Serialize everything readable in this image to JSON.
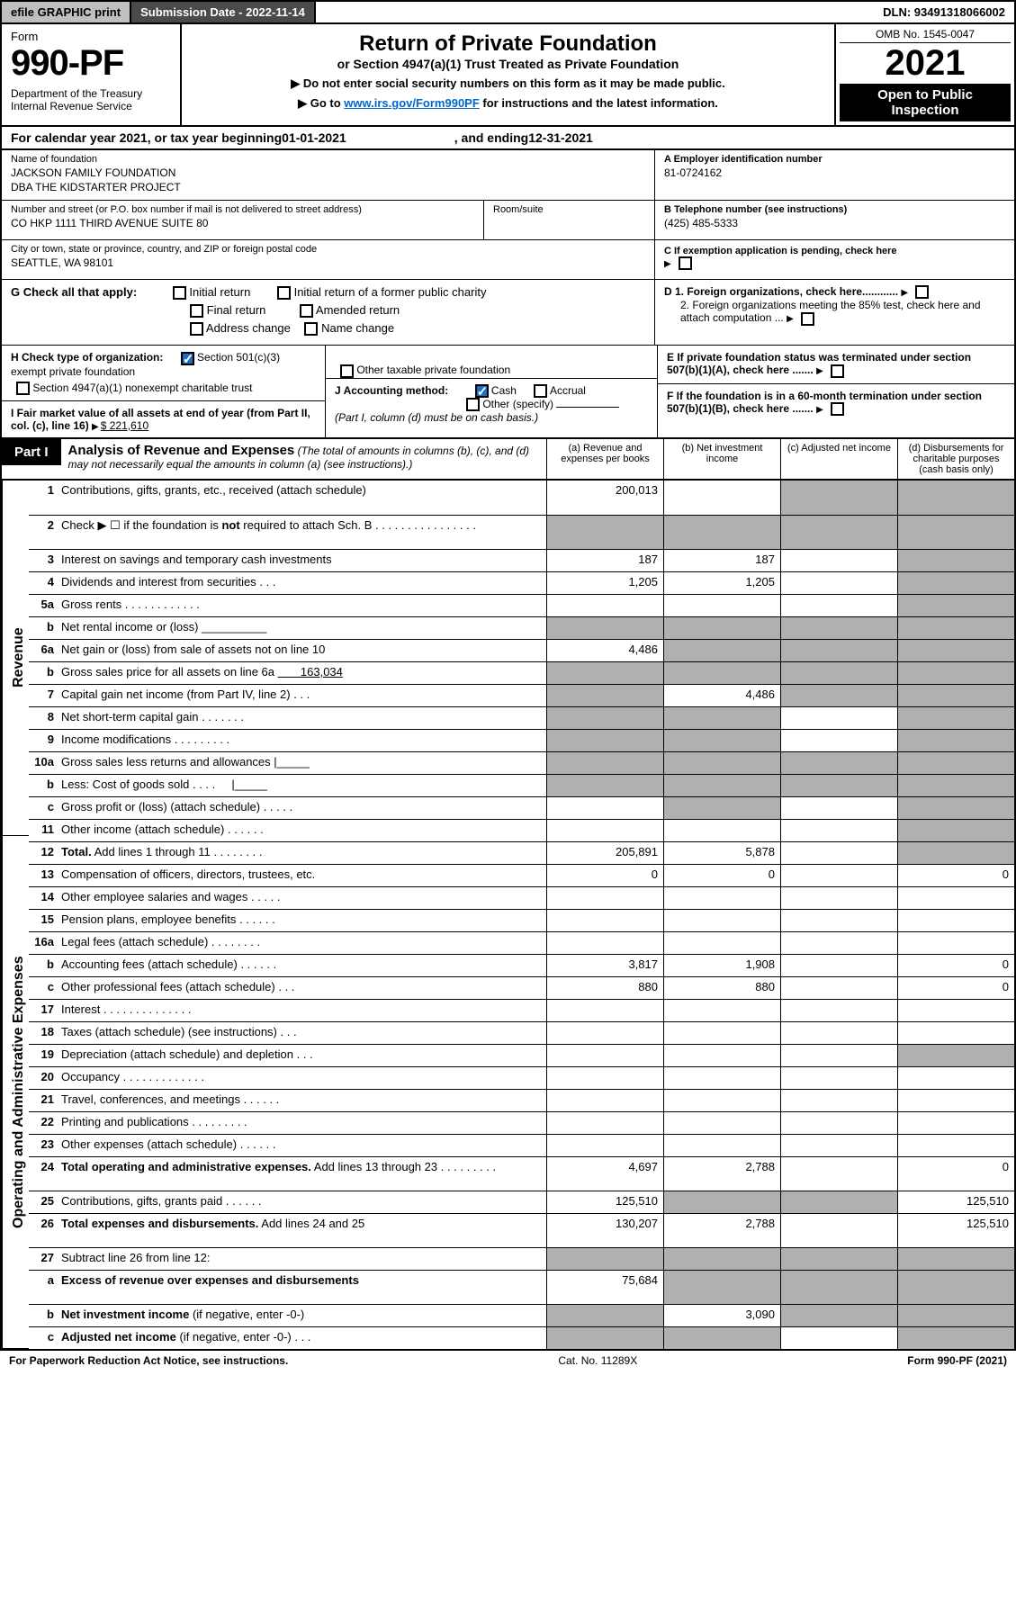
{
  "topbar": {
    "efile": "efile GRAPHIC print",
    "submission_label": "Submission Date - 2022-11-14",
    "dln_label": "DLN: 93491318066002"
  },
  "header": {
    "form": "Form",
    "form_num": "990-PF",
    "dept": "Department of the Treasury\nInternal Revenue Service",
    "title": "Return of Private Foundation",
    "sub1": "or Section 4947(a)(1) Trust Treated as Private Foundation",
    "sub2": "▶ Do not enter social security numbers on this form as it may be made public.",
    "sub3_pre": "▶ Go to ",
    "sub3_link": "www.irs.gov/Form990PF",
    "sub3_post": " for instructions and the latest information.",
    "omb": "OMB No. 1545-0047",
    "year": "2021",
    "open": "Open to Public Inspection"
  },
  "cal": {
    "pre": "For calendar year 2021, or tax year beginning ",
    "beg": "01-01-2021",
    "mid": ", and ending ",
    "end": "12-31-2021"
  },
  "name": {
    "lbl": "Name of foundation",
    "line1": "JACKSON FAMILY FOUNDATION",
    "line2": "DBA THE KIDSTARTER PROJECT"
  },
  "ein": {
    "lbl": "A Employer identification number",
    "val": "81-0724162"
  },
  "addr": {
    "lbl": "Number and street (or P.O. box number if mail is not delivered to street address)",
    "val": "CO HKP 1111 THIRD AVENUE SUITE 80",
    "room_lbl": "Room/suite"
  },
  "phone": {
    "lbl": "B Telephone number (see instructions)",
    "val": "(425) 485-5333"
  },
  "city": {
    "lbl": "City or town, state or province, country, and ZIP or foreign postal code",
    "val": "SEATTLE, WA  98101"
  },
  "exemptC": "C If exemption application is pending, check here",
  "G": {
    "lbl": "G Check all that apply:",
    "opts": [
      "Initial return",
      "Initial return of a former public charity",
      "Final return",
      "Amended return",
      "Address change",
      "Name change"
    ]
  },
  "D": {
    "d1": "D 1. Foreign organizations, check here............",
    "d2": "2. Foreign organizations meeting the 85% test, check here and attach computation ..."
  },
  "H": {
    "lbl": "H Check type of organization:",
    "o1": "Section 501(c)(3) exempt private foundation",
    "o2": "Section 4947(a)(1) nonexempt charitable trust",
    "o3": "Other taxable private foundation"
  },
  "E": "E  If private foundation status was terminated under section 507(b)(1)(A), check here .......",
  "I": {
    "lbl": "I Fair market value of all assets at end of year (from Part II, col. (c), line 16)",
    "val": "$  221,610"
  },
  "J": {
    "lbl": "J Accounting method:",
    "o1": "Cash",
    "o2": "Accrual",
    "o3": "Other (specify)",
    "note": "(Part I, column (d) must be on cash basis.)"
  },
  "F": "F  If the foundation is in a 60-month termination under section 507(b)(1)(B), check here .......",
  "part1": {
    "lbl": "Part I",
    "title": "Analysis of Revenue and Expenses",
    "note": " (The total of amounts in columns (b), (c), and (d) may not necessarily equal the amounts in column (a) (see instructions).)",
    "cols": {
      "a": "(a)  Revenue and expenses per books",
      "b": "(b)  Net investment income",
      "c": "(c)  Adjusted net income",
      "d": "(d)  Disbursements for charitable purposes (cash basis only)"
    }
  },
  "rows": [
    {
      "ln": "1",
      "desc": "Contributions, gifts, grants, etc., received (attach schedule)",
      "a": "200,013",
      "b": "",
      "c": "",
      "d": "",
      "shade_c": true,
      "shade_d": true,
      "tall": true
    },
    {
      "ln": "2",
      "desc": "Check ▶ ☐ if the foundation is <b>not</b> required to attach Sch. B   .   .   .   .   .   .   .   .   .   .   .   .   .   .   .   .",
      "a": "",
      "b": "",
      "c": "",
      "d": "",
      "shade_a": true,
      "shade_b": true,
      "shade_c": true,
      "shade_d": true,
      "tall": true
    },
    {
      "ln": "3",
      "desc": "Interest on savings and temporary cash investments",
      "a": "187",
      "b": "187",
      "c": "",
      "d": "",
      "shade_d": true
    },
    {
      "ln": "4",
      "desc": "Dividends and interest from securities  .   .   .",
      "a": "1,205",
      "b": "1,205",
      "c": "",
      "d": "",
      "shade_d": true
    },
    {
      "ln": "5a",
      "desc": "Gross rents  .   .   .   .   .   .   .   .   .   .   .   .",
      "a": "",
      "b": "",
      "c": "",
      "d": "",
      "shade_d": true
    },
    {
      "ln": "b",
      "desc": "Net rental income or (loss) __________",
      "a": "",
      "b": "",
      "c": "",
      "d": "",
      "shade_a": true,
      "shade_b": true,
      "shade_c": true,
      "shade_d": true
    },
    {
      "ln": "6a",
      "desc": "Net gain or (loss) from sale of assets not on line 10",
      "a": "4,486",
      "b": "",
      "c": "",
      "d": "",
      "shade_b": true,
      "shade_c": true,
      "shade_d": true
    },
    {
      "ln": "b",
      "desc": "Gross sales price for all assets on line 6a <u>       163,034</u>",
      "a": "",
      "b": "",
      "c": "",
      "d": "",
      "shade_a": true,
      "shade_b": true,
      "shade_c": true,
      "shade_d": true
    },
    {
      "ln": "7",
      "desc": "Capital gain net income (from Part IV, line 2)  .   .   .",
      "a": "",
      "b": "4,486",
      "c": "",
      "d": "",
      "shade_a": true,
      "shade_c": true,
      "shade_d": true
    },
    {
      "ln": "8",
      "desc": "Net short-term capital gain  .   .   .   .   .   .   .",
      "a": "",
      "b": "",
      "c": "",
      "d": "",
      "shade_a": true,
      "shade_b": true,
      "shade_d": true
    },
    {
      "ln": "9",
      "desc": "Income modifications  .   .   .   .   .   .   .   .   .",
      "a": "",
      "b": "",
      "c": "",
      "d": "",
      "shade_a": true,
      "shade_b": true,
      "shade_d": true
    },
    {
      "ln": "10a",
      "desc": "Gross sales less returns and allowances  |_____",
      "a": "",
      "b": "",
      "c": "",
      "d": "",
      "shade_a": true,
      "shade_b": true,
      "shade_c": true,
      "shade_d": true
    },
    {
      "ln": "b",
      "desc": "Less: Cost of goods sold   .   .   .   .     |_____",
      "a": "",
      "b": "",
      "c": "",
      "d": "",
      "shade_a": true,
      "shade_b": true,
      "shade_c": true,
      "shade_d": true
    },
    {
      "ln": "c",
      "desc": "Gross profit or (loss) (attach schedule)   .   .   .   .   .",
      "a": "",
      "b": "",
      "c": "",
      "d": "",
      "shade_b": true,
      "shade_d": true
    },
    {
      "ln": "11",
      "desc": "Other income (attach schedule)   .   .   .   .   .   .",
      "a": "",
      "b": "",
      "c": "",
      "d": "",
      "shade_d": true
    },
    {
      "ln": "12",
      "desc": "<b>Total.</b> Add lines 1 through 11  .   .   .   .   .   .   .   .",
      "a": "205,891",
      "b": "5,878",
      "c": "",
      "d": "",
      "shade_d": true
    },
    {
      "ln": "13",
      "desc": "Compensation of officers, directors, trustees, etc.",
      "a": "0",
      "b": "0",
      "c": "",
      "d": "0"
    },
    {
      "ln": "14",
      "desc": "Other employee salaries and wages  .   .   .   .   .",
      "a": "",
      "b": "",
      "c": "",
      "d": ""
    },
    {
      "ln": "15",
      "desc": "Pension plans, employee benefits  .   .   .   .   .   .",
      "a": "",
      "b": "",
      "c": "",
      "d": ""
    },
    {
      "ln": "16a",
      "desc": "Legal fees (attach schedule) .   .   .   .   .   .   .   .",
      "a": "",
      "b": "",
      "c": "",
      "d": ""
    },
    {
      "ln": "b",
      "desc": "Accounting fees (attach schedule) .   .   .   .   .   .",
      "a": "3,817",
      "b": "1,908",
      "c": "",
      "d": "0"
    },
    {
      "ln": "c",
      "desc": "Other professional fees (attach schedule)  .   .   .",
      "a": "880",
      "b": "880",
      "c": "",
      "d": "0"
    },
    {
      "ln": "17",
      "desc": "Interest .   .   .   .   .   .   .   .   .   .   .   .   .   .",
      "a": "",
      "b": "",
      "c": "",
      "d": ""
    },
    {
      "ln": "18",
      "desc": "Taxes (attach schedule) (see instructions)  .   .   .",
      "a": "",
      "b": "",
      "c": "",
      "d": ""
    },
    {
      "ln": "19",
      "desc": "Depreciation (attach schedule) and depletion  .   .   .",
      "a": "",
      "b": "",
      "c": "",
      "d": "",
      "shade_d": true
    },
    {
      "ln": "20",
      "desc": "Occupancy .   .   .   .   .   .   .   .   .   .   .   .   .",
      "a": "",
      "b": "",
      "c": "",
      "d": ""
    },
    {
      "ln": "21",
      "desc": "Travel, conferences, and meetings .   .   .   .   .   .",
      "a": "",
      "b": "",
      "c": "",
      "d": ""
    },
    {
      "ln": "22",
      "desc": "Printing and publications .   .   .   .   .   .   .   .   .",
      "a": "",
      "b": "",
      "c": "",
      "d": ""
    },
    {
      "ln": "23",
      "desc": "Other expenses (attach schedule) .   .   .   .   .   .",
      "a": "",
      "b": "",
      "c": "",
      "d": ""
    },
    {
      "ln": "24",
      "desc": "<b>Total operating and administrative expenses.</b> Add lines 13 through 23  .   .   .   .   .   .   .   .   .",
      "a": "4,697",
      "b": "2,788",
      "c": "",
      "d": "0",
      "tall": true
    },
    {
      "ln": "25",
      "desc": "Contributions, gifts, grants paid  .   .   .   .   .   .",
      "a": "125,510",
      "b": "",
      "c": "",
      "d": "125,510",
      "shade_b": true,
      "shade_c": true
    },
    {
      "ln": "26",
      "desc": "<b>Total expenses and disbursements.</b> Add lines 24 and 25",
      "a": "130,207",
      "b": "2,788",
      "c": "",
      "d": "125,510",
      "tall": true
    },
    {
      "ln": "27",
      "desc": "Subtract line 26 from line 12:",
      "a": "",
      "b": "",
      "c": "",
      "d": "",
      "shade_a": true,
      "shade_b": true,
      "shade_c": true,
      "shade_d": true
    },
    {
      "ln": "a",
      "desc": "<b>Excess of revenue over expenses and disbursements</b>",
      "a": "75,684",
      "b": "",
      "c": "",
      "d": "",
      "shade_b": true,
      "shade_c": true,
      "shade_d": true,
      "tall": true
    },
    {
      "ln": "b",
      "desc": "<b>Net investment income</b> (if negative, enter -0-)",
      "a": "",
      "b": "3,090",
      "c": "",
      "d": "",
      "shade_a": true,
      "shade_c": true,
      "shade_d": true
    },
    {
      "ln": "c",
      "desc": "<b>Adjusted net income</b> (if negative, enter -0-) .   .   .",
      "a": "",
      "b": "",
      "c": "",
      "d": "",
      "shade_a": true,
      "shade_b": true,
      "shade_d": true
    }
  ],
  "vtabs": {
    "rev": "Revenue",
    "exp": "Operating and Administrative Expenses"
  },
  "footer": {
    "left": "For Paperwork Reduction Act Notice, see instructions.",
    "mid": "Cat. No. 11289X",
    "right": "Form 990-PF (2021)"
  }
}
